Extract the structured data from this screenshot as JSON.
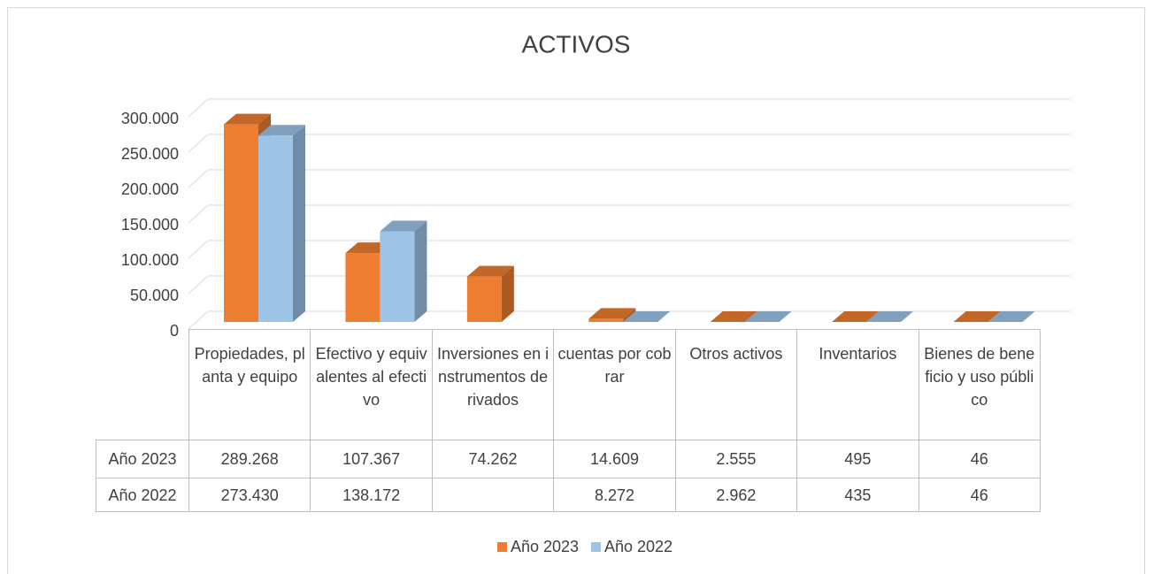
{
  "chart_data": {
    "type": "bar3d",
    "title": "ACTIVOS",
    "categories": [
      "Propiedades, planta y equipo",
      "Efectivo y equivalentes al efectivo",
      "Inversiones en instrumentos derivados",
      "cuentas por cobrar",
      "Otros activos",
      "Inventarios",
      "Bienes de beneficio y uso público"
    ],
    "series": [
      {
        "name": "Año 2023",
        "color": "#ed7d31",
        "values": [
          289268,
          107367,
          74262,
          14609,
          2555,
          495,
          46
        ],
        "value_labels": [
          "289.268",
          "107.367",
          "74.262",
          "14.609",
          "2.555",
          "495",
          "46"
        ]
      },
      {
        "name": "Año 2022",
        "color": "#9dc3e6",
        "values": [
          273430,
          138172,
          null,
          8272,
          2962,
          435,
          46
        ],
        "value_labels": [
          "273.430",
          "138.172",
          null,
          "8.272",
          "2.962",
          "435",
          "46"
        ]
      }
    ],
    "ylim": [
      0,
      300000
    ],
    "yticks": [
      0,
      {
        "value": 50000,
        "label": "50.000"
      },
      {
        "value": 100000,
        "label": "100.000"
      },
      {
        "value": 150000,
        "label": "150.000"
      },
      {
        "value": 200000,
        "label": "200.000"
      },
      {
        "value": 250000,
        "label": "250.000"
      },
      {
        "value": 300000,
        "label": "300.000"
      }
    ],
    "grid": true,
    "legend": "bottom",
    "data_table": true
  }
}
